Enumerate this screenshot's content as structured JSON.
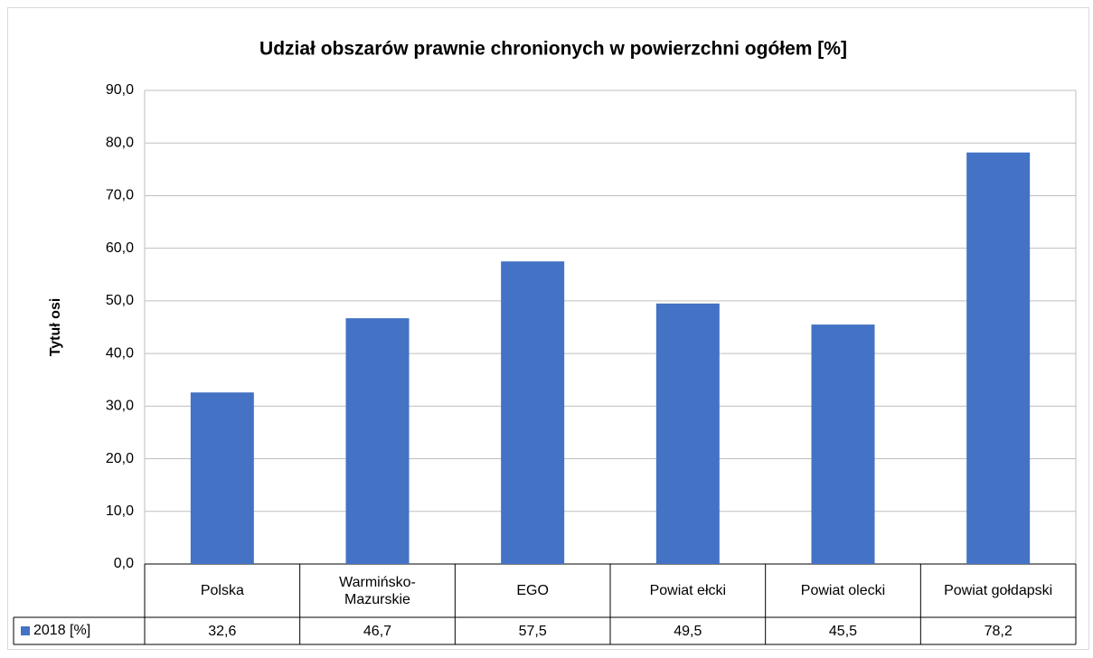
{
  "chart_data": {
    "type": "bar",
    "title": "Udział obszarów prawnie chronionych w powierzchni ogółem [%]",
    "y_label": "Tytuł osi",
    "categories": [
      "Polska",
      "Warmińsko-Mazurskie",
      "EGO",
      "Powiat ełcki",
      "Powiat olecki",
      "Powiat gołdapski"
    ],
    "series": [
      {
        "name": "2018 [%]",
        "color": "#4472c4",
        "values": [
          32.6,
          46.7,
          57.5,
          49.5,
          45.5,
          78.2
        ],
        "value_labels": [
          "32,6",
          "46,7",
          "57,5",
          "49,5",
          "45,5",
          "78,2"
        ]
      }
    ],
    "ylim": [
      0,
      90
    ],
    "yticks": [
      {
        "value": 0,
        "label": "0,0"
      },
      {
        "value": 10,
        "label": "10,0"
      },
      {
        "value": 20,
        "label": "20,0"
      },
      {
        "value": 30,
        "label": "30,0"
      },
      {
        "value": 40,
        "label": "40,0"
      },
      {
        "value": 50,
        "label": "50,0"
      },
      {
        "value": 60,
        "label": "60,0"
      },
      {
        "value": 70,
        "label": "70,0"
      },
      {
        "value": 80,
        "label": "80,0"
      },
      {
        "value": 90,
        "label": "90,0"
      }
    ],
    "grid": true,
    "data_table": true
  }
}
